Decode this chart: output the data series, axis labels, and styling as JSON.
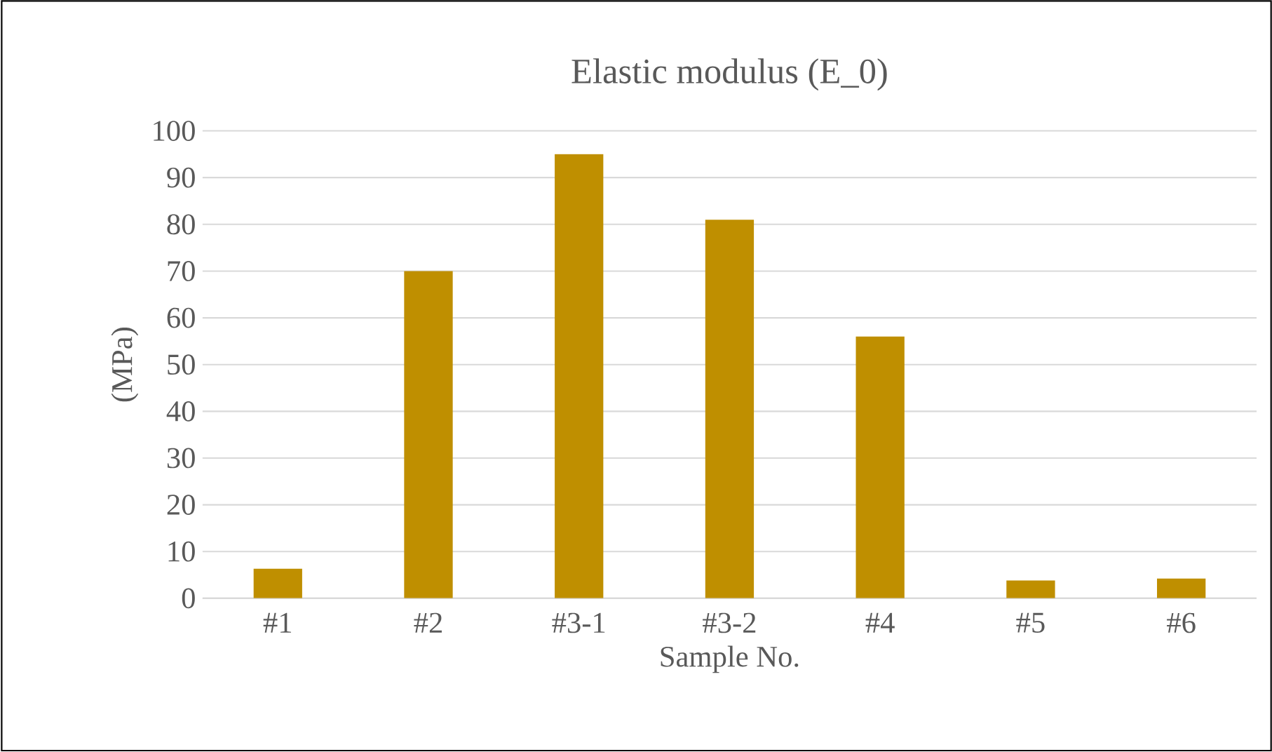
{
  "chart_data": {
    "type": "bar",
    "title": "Elastic modulus (E_0)",
    "xlabel": "Sample No.",
    "ylabel": "(MPa)",
    "categories": [
      "#1",
      "#2",
      "#3-1",
      "#3-2",
      "#4",
      "#5",
      "#6"
    ],
    "values": [
      6.3,
      70,
      95,
      81,
      56,
      3.8,
      4.2
    ],
    "color": "#bf8f00",
    "ylim": [
      0,
      100
    ],
    "yticks": [
      0,
      10,
      20,
      30,
      40,
      50,
      60,
      70,
      80,
      90,
      100
    ],
    "grid": "y"
  }
}
